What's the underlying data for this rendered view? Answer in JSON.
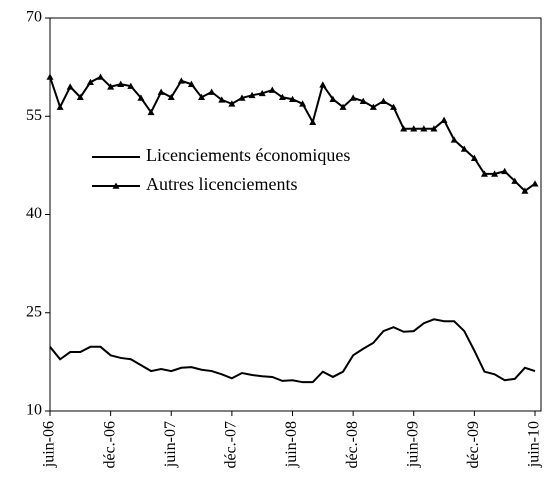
{
  "chart_data": {
    "type": "line",
    "categories": [
      "juin-06",
      null,
      null,
      null,
      null,
      null,
      "déc.-06",
      null,
      null,
      null,
      null,
      null,
      "juin-07",
      null,
      null,
      null,
      null,
      null,
      "déc.-07",
      null,
      null,
      null,
      null,
      null,
      "juin-08",
      null,
      null,
      null,
      null,
      null,
      "déc.-08",
      null,
      null,
      null,
      null,
      null,
      "juin-09",
      null,
      null,
      null,
      null,
      null,
      "déc.-09",
      null,
      null,
      null,
      null,
      null,
      "juin-10"
    ],
    "series": [
      {
        "name": "Licenciements économiques",
        "color": "#000000",
        "marker": "none",
        "values": [
          19.8,
          17.9,
          19.0,
          19.0,
          19.8,
          19.8,
          18.5,
          18.1,
          17.9,
          17.0,
          16.1,
          16.4,
          16.1,
          16.6,
          16.7,
          16.3,
          16.1,
          15.6,
          15.0,
          15.8,
          15.5,
          15.3,
          15.2,
          14.6,
          14.7,
          14.4,
          14.4,
          16.0,
          15.2,
          16.0,
          18.5,
          19.5,
          20.4,
          22.2,
          22.8,
          22.1,
          22.2,
          23.4,
          24.0,
          23.7,
          23.7,
          22.2,
          19.2,
          16.0,
          15.6,
          14.7,
          14.9,
          16.6,
          16.1
        ]
      },
      {
        "name": "Autres licenciements",
        "color": "#000000",
        "marker": "triangle",
        "values": [
          61.0,
          56.4,
          59.5,
          57.9,
          60.2,
          61.0,
          59.5,
          59.9,
          59.6,
          57.8,
          55.6,
          58.7,
          57.9,
          60.4,
          59.9,
          57.9,
          58.7,
          57.5,
          56.9,
          57.8,
          58.2,
          58.5,
          59.0,
          57.9,
          57.6,
          56.9,
          54.1,
          59.8,
          57.6,
          56.4,
          57.8,
          57.3,
          56.4,
          57.3,
          56.4,
          53.1,
          53.1,
          53.1,
          53.1,
          54.4,
          51.4,
          50.0,
          48.6,
          46.2,
          46.2,
          46.6,
          45.1,
          43.6,
          44.7
        ]
      }
    ],
    "ylim": [
      10,
      70
    ],
    "yticks": [
      10,
      25,
      40,
      55,
      70
    ],
    "grid": false,
    "legend": "left"
  }
}
